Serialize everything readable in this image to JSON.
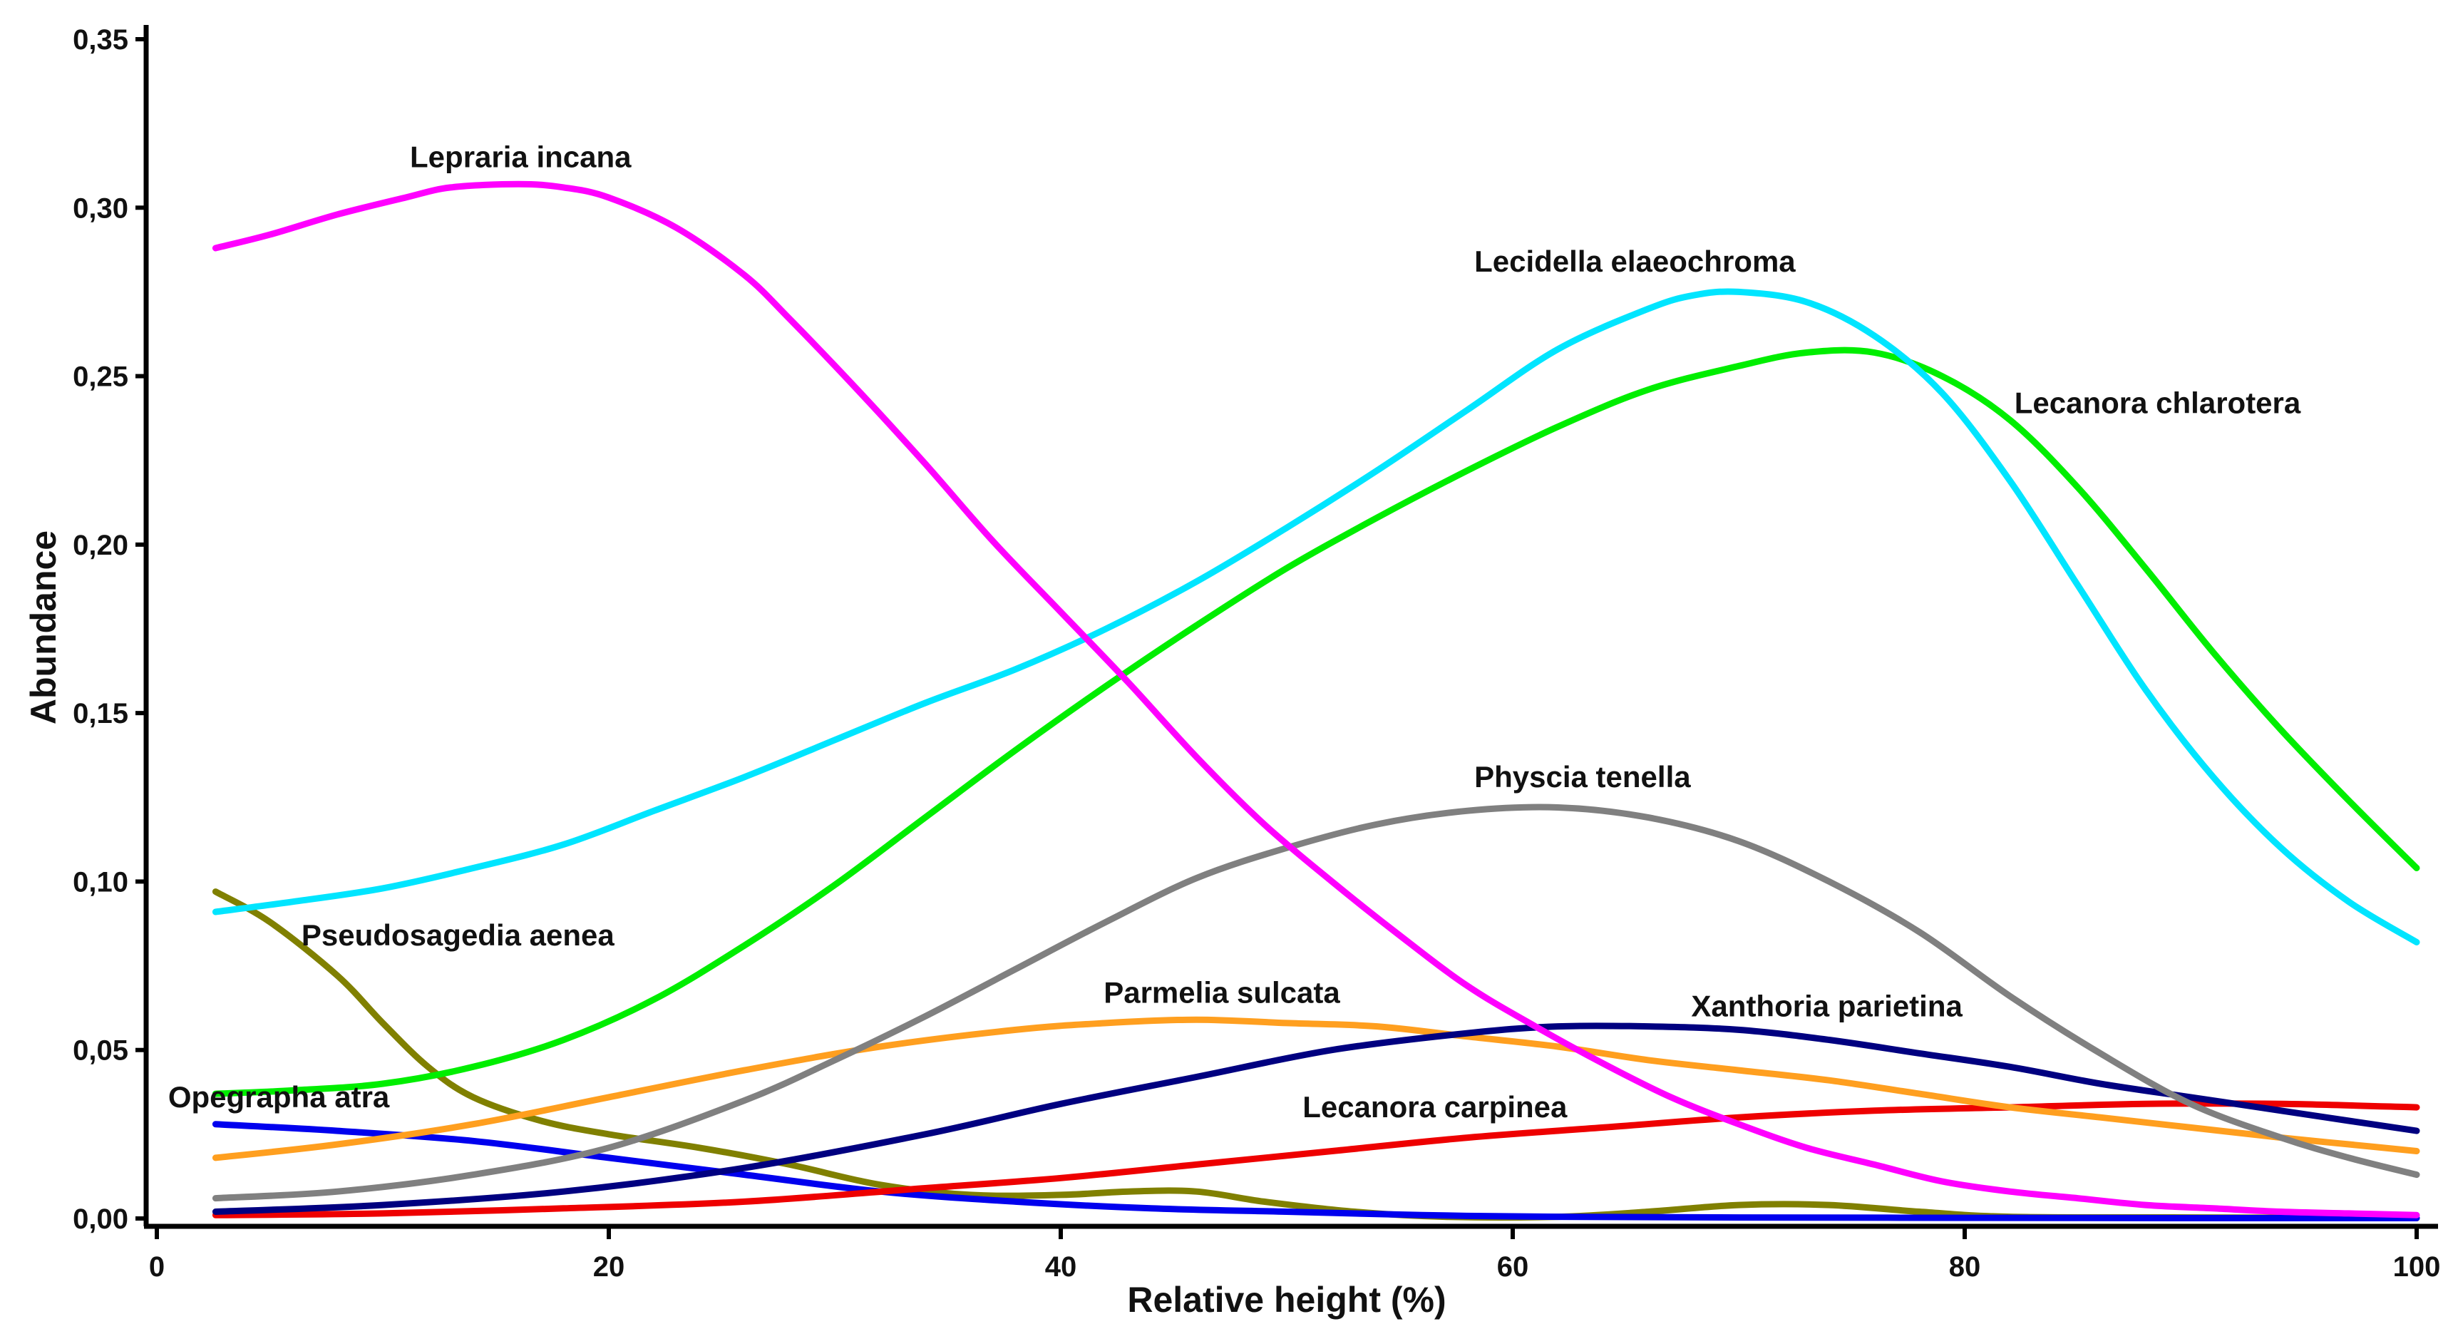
{
  "chart_data": {
    "type": "line",
    "xlabel": "Relative height (%)",
    "ylabel": "Abundance",
    "xlim": [
      0,
      100
    ],
    "ylim": [
      0,
      0.35
    ],
    "xticks": [
      0,
      20,
      40,
      60,
      80,
      100
    ],
    "xtick_labels": [
      "0",
      "20",
      "40",
      "60",
      "80",
      "100"
    ],
    "yticks": [
      0,
      0.05,
      0.1,
      0.15,
      0.2,
      0.25,
      0.3,
      0.35
    ],
    "ytick_labels": [
      "0,00",
      "0,05",
      "0,10",
      "0,15",
      "0,20",
      "0,25",
      "0,30",
      "0,35"
    ],
    "grid": false,
    "legend": "none (labels placed next to lines)",
    "series": [
      {
        "name": "Lepraria incana",
        "color": "#FF00FF",
        "x": [
          2.6,
          5,
          8,
          11,
          13,
          16,
          18,
          20,
          23,
          26,
          28,
          31,
          34,
          37,
          40,
          43,
          46,
          49,
          52,
          55,
          58,
          61,
          64,
          67,
          70,
          73,
          76,
          79,
          82,
          85,
          88,
          91,
          94,
          97,
          100
        ],
        "y": [
          0.288,
          0.292,
          0.298,
          0.303,
          0.306,
          0.307,
          0.306,
          0.303,
          0.294,
          0.28,
          0.267,
          0.246,
          0.224,
          0.201,
          0.18,
          0.159,
          0.137,
          0.117,
          0.1,
          0.084,
          0.069,
          0.057,
          0.046,
          0.036,
          0.028,
          0.021,
          0.016,
          0.011,
          0.008,
          0.006,
          0.004,
          0.003,
          0.002,
          0.0015,
          0.001
        ]
      },
      {
        "name": "Lecidella elaeochroma",
        "color": "#00E5FF",
        "x": [
          2.6,
          6,
          10,
          14,
          18,
          22,
          26,
          30,
          34,
          38,
          42,
          46,
          50,
          54,
          58,
          62,
          66,
          68,
          70,
          73,
          76,
          79,
          82,
          85,
          88,
          91,
          94,
          97,
          100
        ],
        "y": [
          0.091,
          0.094,
          0.098,
          0.104,
          0.111,
          0.121,
          0.131,
          0.142,
          0.153,
          0.163,
          0.175,
          0.189,
          0.205,
          0.222,
          0.24,
          0.258,
          0.27,
          0.274,
          0.275,
          0.272,
          0.262,
          0.245,
          0.219,
          0.188,
          0.157,
          0.131,
          0.11,
          0.094,
          0.082
        ]
      },
      {
        "name": "Lecanora chlarotera",
        "color": "#00EE00",
        "x": [
          2.6,
          6,
          10,
          14,
          18,
          22,
          26,
          30,
          34,
          38,
          42,
          46,
          50,
          54,
          58,
          62,
          66,
          70,
          73,
          76,
          79,
          82,
          85,
          88,
          91,
          94,
          97,
          100
        ],
        "y": [
          0.037,
          0.038,
          0.04,
          0.045,
          0.053,
          0.065,
          0.081,
          0.099,
          0.119,
          0.139,
          0.158,
          0.176,
          0.193,
          0.208,
          0.222,
          0.235,
          0.246,
          0.253,
          0.257,
          0.257,
          0.25,
          0.237,
          0.217,
          0.193,
          0.168,
          0.145,
          0.124,
          0.104
        ]
      },
      {
        "name": "Physcia tenella",
        "color": "#808080",
        "x": [
          2.6,
          8,
          14,
          20,
          26,
          30,
          34,
          38,
          42,
          46,
          50,
          54,
          58,
          62,
          66,
          70,
          74,
          78,
          82,
          86,
          90,
          94,
          97,
          100
        ],
        "y": [
          0.006,
          0.008,
          0.013,
          0.021,
          0.035,
          0.047,
          0.06,
          0.074,
          0.088,
          0.101,
          0.11,
          0.117,
          0.121,
          0.122,
          0.119,
          0.112,
          0.1,
          0.085,
          0.066,
          0.049,
          0.034,
          0.024,
          0.018,
          0.013
        ]
      },
      {
        "name": "Parmelia sulcata",
        "color": "#FF9F1F",
        "x": [
          2.6,
          8,
          14,
          20,
          26,
          32,
          38,
          42,
          46,
          50,
          54,
          58,
          62,
          66,
          70,
          74,
          78,
          82,
          86,
          90,
          94,
          97,
          100
        ],
        "y": [
          0.018,
          0.022,
          0.028,
          0.036,
          0.044,
          0.051,
          0.056,
          0.058,
          0.059,
          0.058,
          0.057,
          0.054,
          0.051,
          0.047,
          0.044,
          0.041,
          0.037,
          0.033,
          0.03,
          0.027,
          0.024,
          0.022,
          0.02
        ]
      },
      {
        "name": "Xanthoria parietina",
        "color": "#000080",
        "x": [
          2.6,
          10,
          18,
          26,
          34,
          40,
          46,
          52,
          58,
          62,
          66,
          70,
          74,
          78,
          82,
          86,
          90,
          94,
          97,
          100
        ],
        "y": [
          0.002,
          0.004,
          0.008,
          0.015,
          0.025,
          0.034,
          0.042,
          0.05,
          0.055,
          0.057,
          0.057,
          0.056,
          0.053,
          0.049,
          0.045,
          0.04,
          0.036,
          0.032,
          0.029,
          0.026
        ]
      },
      {
        "name": "Lecanora carpinea",
        "color": "#EE0000",
        "x": [
          2.6,
          10,
          18,
          26,
          34,
          40,
          46,
          52,
          58,
          64,
          70,
          76,
          82,
          88,
          94,
          100
        ],
        "y": [
          0.001,
          0.0015,
          0.003,
          0.005,
          0.009,
          0.012,
          0.016,
          0.02,
          0.024,
          0.027,
          0.03,
          0.032,
          0.033,
          0.034,
          0.034,
          0.033
        ]
      },
      {
        "name": "Opegrapha atra",
        "color": "#0000EE",
        "x": [
          2.6,
          8,
          14,
          20,
          26,
          32,
          38,
          44,
          50,
          56,
          62,
          70,
          80,
          90,
          100
        ],
        "y": [
          0.028,
          0.026,
          0.023,
          0.018,
          0.013,
          0.008,
          0.005,
          0.003,
          0.002,
          0.001,
          0.0005,
          0.0003,
          0.0002,
          0.0001,
          0.0001
        ]
      },
      {
        "name": "Pseudosagedia aenea",
        "color": "#808000",
        "x": [
          2.6,
          5,
          8,
          10,
          12,
          14,
          17,
          20,
          24,
          28,
          32,
          36,
          40,
          43,
          46,
          49,
          53,
          57,
          62,
          66,
          70,
          74,
          78,
          82,
          90,
          100
        ],
        "y": [
          0.097,
          0.088,
          0.072,
          0.058,
          0.045,
          0.036,
          0.029,
          0.025,
          0.021,
          0.016,
          0.01,
          0.007,
          0.007,
          0.008,
          0.008,
          0.005,
          0.002,
          0.0005,
          0.0005,
          0.002,
          0.004,
          0.004,
          0.002,
          0.0005,
          0.0003,
          0.0001
        ]
      }
    ],
    "annotations": [
      {
        "text": "Lepraria incana",
        "x": 11.2,
        "y": 0.312
      },
      {
        "text": "Lecidella elaeochroma",
        "x": 58.3,
        "y": 0.281
      },
      {
        "text": "Lecanora chlarotera",
        "x": 82.2,
        "y": 0.239
      },
      {
        "text": "Physcia tenella",
        "x": 58.3,
        "y": 0.128
      },
      {
        "text": "Pseudosagedia aenea",
        "x": 6.4,
        "y": 0.081
      },
      {
        "text": "Parmelia sulcata",
        "x": 41.9,
        "y": 0.064
      },
      {
        "text": "Xanthoria parietina",
        "x": 67.9,
        "y": 0.06
      },
      {
        "text": "Opegrapha atra",
        "x": 0.5,
        "y": 0.033
      },
      {
        "text": "Lecanora carpinea",
        "x": 50.7,
        "y": 0.03
      }
    ]
  }
}
